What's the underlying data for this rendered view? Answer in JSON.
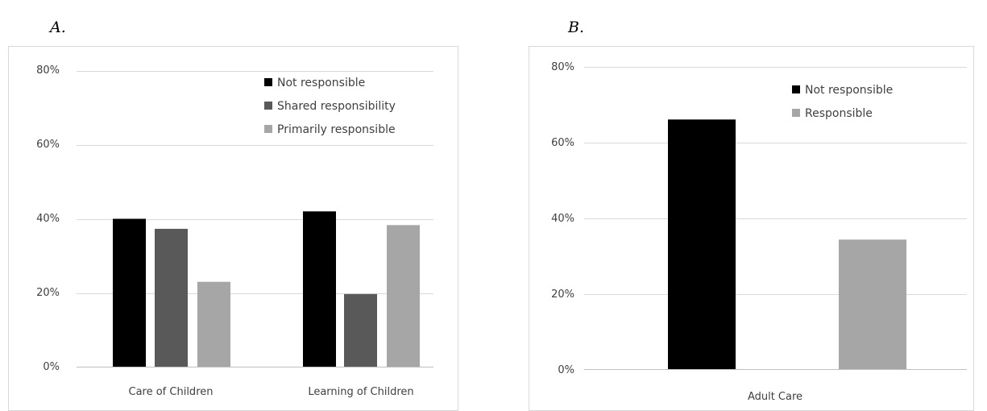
{
  "chart_data": [
    {
      "panel": "A.",
      "type": "bar",
      "categories": [
        "Care of Children",
        "Learning of Children"
      ],
      "series": [
        {
          "name": "Not responsible",
          "values": [
            40,
            42
          ],
          "color": "#000000"
        },
        {
          "name": "Shared responsibility",
          "values": [
            37.3,
            19.7
          ],
          "color": "#595959"
        },
        {
          "name": "Primarily responsible",
          "values": [
            23,
            38.3
          ],
          "color": "#a6a6a6"
        }
      ],
      "yticks": [
        "0%",
        "20%",
        "40%",
        "60%",
        "80%"
      ],
      "ylim": [
        0,
        80
      ],
      "grid": true,
      "legend_position": "top-right",
      "title": "",
      "xlabel": "",
      "ylabel": ""
    },
    {
      "panel": "B.",
      "type": "bar",
      "categories": [
        "Adult Care"
      ],
      "series": [
        {
          "name": "Not responsible",
          "values": [
            66
          ],
          "color": "#000000"
        },
        {
          "name": "Responsible",
          "values": [
            34.3
          ],
          "color": "#a6a6a6"
        }
      ],
      "yticks": [
        "0%",
        "20%",
        "40%",
        "60%",
        "80%"
      ],
      "ylim": [
        0,
        80
      ],
      "grid": true,
      "legend_position": "top-right",
      "title": "",
      "xlabel": "",
      "ylabel": ""
    }
  ]
}
